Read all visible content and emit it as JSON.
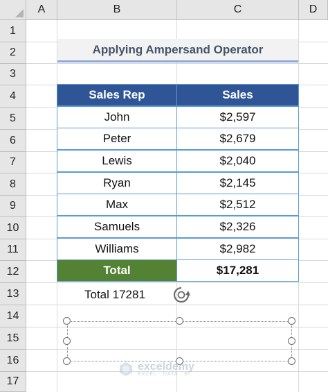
{
  "sheet": {
    "columns": [
      "A",
      "B",
      "C",
      "D"
    ],
    "rows": [
      "1",
      "2",
      "3",
      "4",
      "5",
      "6",
      "7",
      "8",
      "9",
      "10",
      "11",
      "12",
      "13",
      "14",
      "15",
      "16",
      "17"
    ]
  },
  "title": "Applying Ampersand Operator",
  "table": {
    "headers": [
      "Sales Rep",
      "Sales"
    ],
    "rows": [
      {
        "rep": "John",
        "sales": "$2,597"
      },
      {
        "rep": "Peter",
        "sales": "$2,679"
      },
      {
        "rep": "Lewis",
        "sales": "$2,040"
      },
      {
        "rep": "Ryan",
        "sales": "$2,145"
      },
      {
        "rep": "Max",
        "sales": "$2,512"
      },
      {
        "rep": "Samuels",
        "sales": "$2,326"
      },
      {
        "rep": "Williams",
        "sales": "$2,982"
      }
    ],
    "total_label": "Total",
    "total_value": "$17,281"
  },
  "formula_result": "Total 17281",
  "watermark": {
    "name": "exceldemy",
    "sub": "EXCEL · DATA · BI"
  },
  "colors": {
    "header_blue": "#2f5597",
    "total_green": "#548235",
    "border_blue": "#5b9bd5",
    "title_text": "#44546a"
  },
  "icons": {
    "rotate": "rotate-handle-icon",
    "watermark_logo": "exceldemy-logo-icon"
  }
}
